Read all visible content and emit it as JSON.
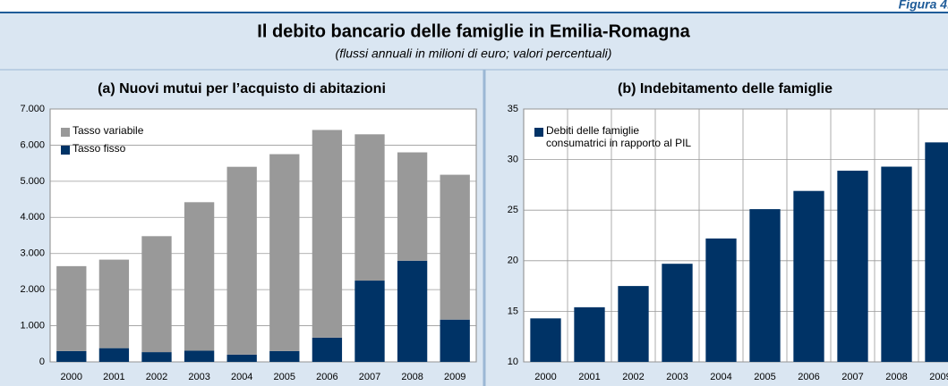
{
  "header": {
    "figure_label": "Figura 4.",
    "title": "Il debito bancario delle famiglie in Emilia-Romagna",
    "subtitle": "(flussi annuali in milioni di euro; valori percentuali)"
  },
  "chart_data": [
    {
      "type": "stacked-bar",
      "title": "(a) Nuovi mutui per l’acquisto di abitazioni",
      "categories": [
        "2000",
        "2001",
        "2002",
        "2003",
        "2004",
        "2005",
        "2006",
        "2007",
        "2008",
        "2009"
      ],
      "series": [
        {
          "name": "Tasso fisso",
          "color": "#003366",
          "values": [
            300,
            380,
            270,
            310,
            200,
            300,
            670,
            2250,
            2800,
            1170
          ]
        },
        {
          "name": "Tasso variabile",
          "color": "#999999",
          "values": [
            2350,
            2450,
            3210,
            4110,
            5200,
            5450,
            5750,
            4050,
            3000,
            4010
          ]
        }
      ],
      "ylim": [
        0,
        7000
      ],
      "yticks": [
        0,
        {
          "value": 1000,
          "label": "1.000"
        },
        {
          "value": 2000,
          "label": "2.000"
        },
        {
          "value": 3000,
          "label": "3.000"
        },
        {
          "value": 4000,
          "label": "4.000"
        },
        {
          "value": 5000,
          "label": "5.000"
        },
        {
          "value": 6000,
          "label": "6.000"
        },
        {
          "value": 7000,
          "label": "7.000"
        }
      ],
      "grid": true,
      "legend": "top-left"
    },
    {
      "type": "bar",
      "title": "(b) Indebitamento delle famiglie",
      "categories": [
        "2000",
        "2001",
        "2002",
        "2003",
        "2004",
        "2005",
        "2006",
        "2007",
        "2008",
        "2009"
      ],
      "series": [
        {
          "name": "Debiti delle famiglie consumatrici in rapporto al PIL",
          "color": "#003366",
          "values": [
            14.3,
            15.4,
            17.5,
            19.7,
            22.2,
            25.1,
            26.9,
            28.9,
            29.3,
            31.7
          ]
        }
      ],
      "ylim": [
        10,
        35
      ],
      "yticks": [
        10,
        15,
        20,
        25,
        30,
        35
      ],
      "grid": true,
      "vgrid": true,
      "legend": "top-left"
    }
  ]
}
